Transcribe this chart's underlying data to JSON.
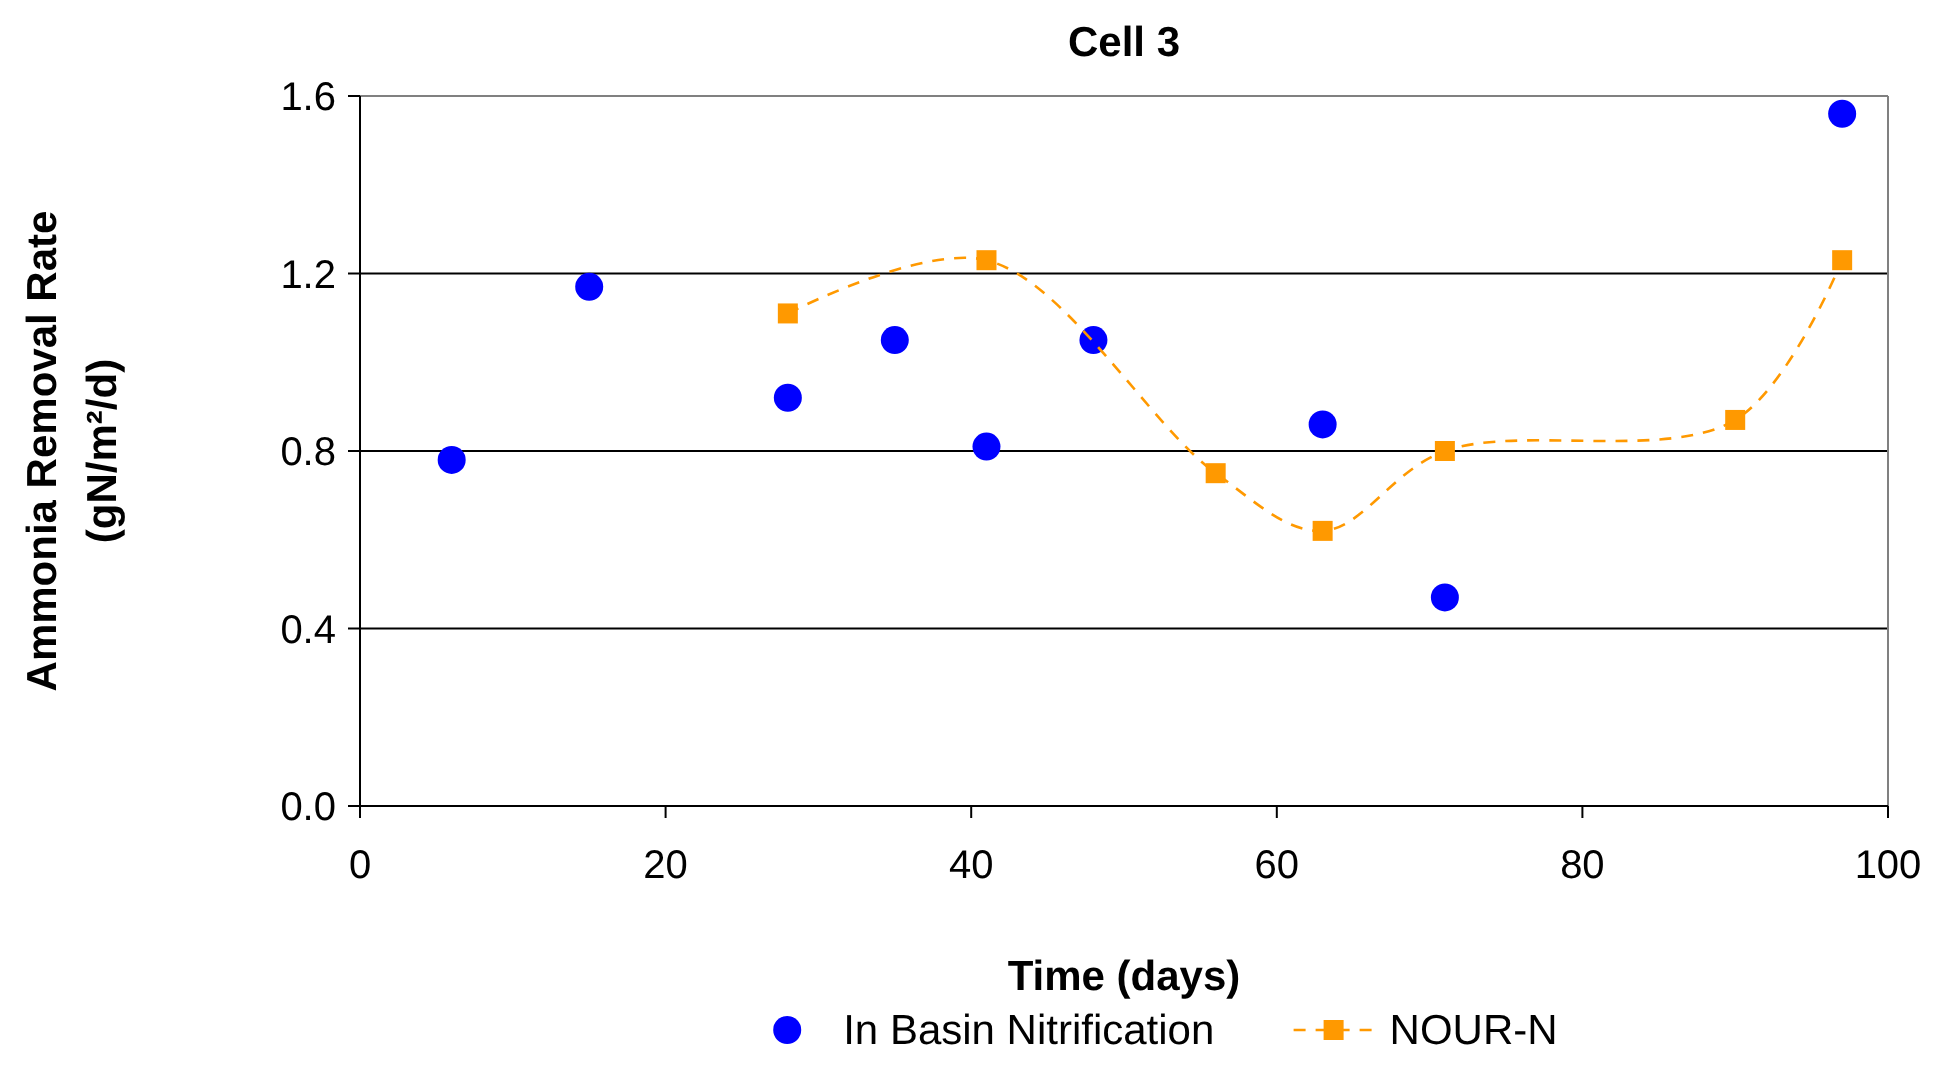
{
  "chart_data": {
    "type": "scatter",
    "title": "Cell 3",
    "xlabel": "Time (days)",
    "ylabel": "Ammonia Removal Rate\n(gN/m²/d)",
    "xlim": [
      0,
      100
    ],
    "xticks": [
      0,
      20,
      40,
      60,
      80,
      100
    ],
    "ylim": [
      0,
      1.6
    ],
    "yticks": [
      {
        "value": 0,
        "label": "0.0"
      },
      {
        "value": 0.4,
        "label": "0.4"
      },
      {
        "value": 0.8,
        "label": "0.8"
      },
      {
        "value": 1.2,
        "label": "1.2"
      },
      {
        "value": 1.6,
        "label": "1.6"
      }
    ],
    "grid": "y",
    "legend": "bottom",
    "series": [
      {
        "name": "In Basin Nitrification",
        "type": "scatter",
        "marker": "circle",
        "color": "#0000ff",
        "x": [
          6,
          15,
          28,
          35,
          41,
          48,
          63,
          71,
          97
        ],
        "values": [
          0.78,
          1.17,
          0.92,
          1.05,
          0.81,
          1.05,
          0.86,
          0.47,
          1.56
        ]
      },
      {
        "name": "NOUR-N",
        "type": "line",
        "marker": "square",
        "line_style": "dashed",
        "color": "#ff9900",
        "x": [
          28,
          41,
          56,
          63,
          71,
          90,
          97
        ],
        "values": [
          1.11,
          1.23,
          0.75,
          0.62,
          0.8,
          0.87,
          1.23
        ]
      }
    ]
  }
}
